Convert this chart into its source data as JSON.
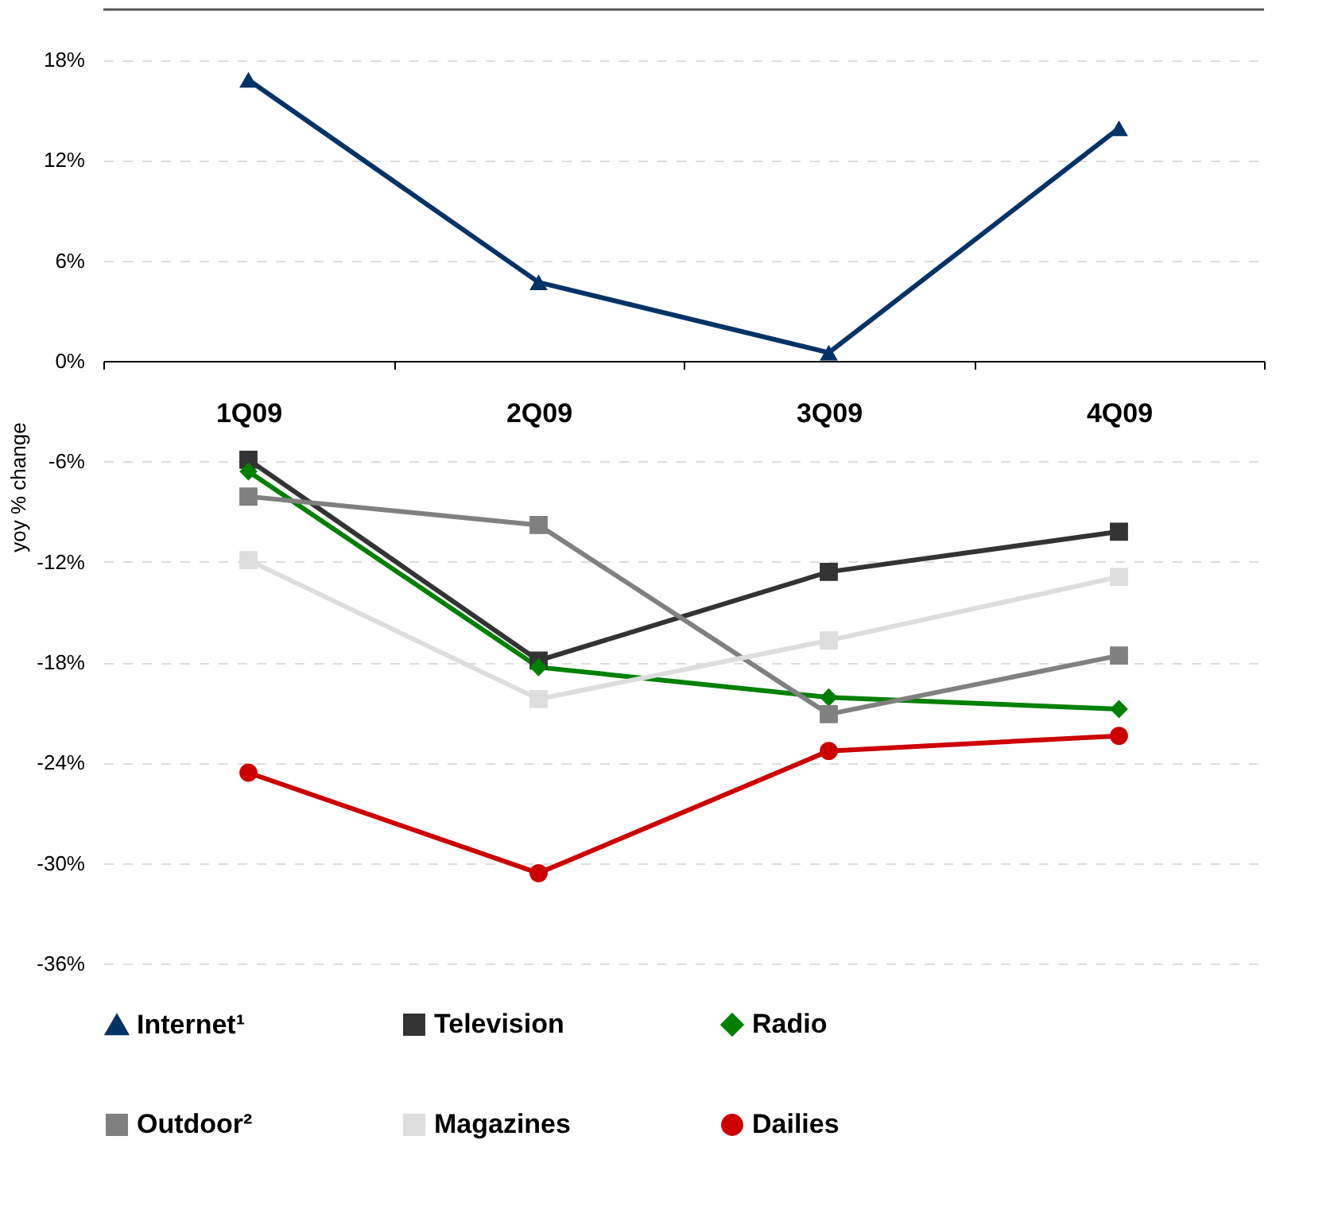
{
  "chart_data": {
    "type": "line",
    "ylabel": "yoy % change",
    "categories": [
      "1Q09",
      "2Q09",
      "3Q09",
      "4Q09"
    ],
    "series": [
      {
        "name": "Internet¹",
        "color": "#003366",
        "marker": "triangle",
        "values": [
          16.8,
          4.7,
          0.5,
          13.9
        ]
      },
      {
        "name": "Television",
        "color": "#333333",
        "marker": "square",
        "values": [
          -5.9,
          -17.9,
          -12.6,
          -10.2
        ]
      },
      {
        "name": "Radio",
        "color": "#008000",
        "marker": "diamond",
        "values": [
          -6.6,
          -18.3,
          -20.1,
          -20.8
        ]
      },
      {
        "name": "Outdoor²",
        "color": "#808080",
        "marker": "square",
        "values": [
          -8.1,
          -9.8,
          -21.1,
          -17.6
        ]
      },
      {
        "name": "Magazines",
        "color": "#dddddd",
        "marker": "square",
        "values": [
          -11.9,
          -20.2,
          -16.7,
          -12.9
        ]
      },
      {
        "name": "Dailies",
        "color": "#cc0000",
        "marker": "circle",
        "values": [
          -24.6,
          -30.6,
          -23.3,
          -22.4
        ]
      }
    ],
    "ylim": [
      -36,
      21
    ],
    "yticks": [
      {
        "value": 18,
        "label": "18%"
      },
      {
        "value": 12,
        "label": "12%"
      },
      {
        "value": 6,
        "label": "6%"
      },
      {
        "value": 0,
        "label": "0%"
      },
      {
        "value": -6,
        "label": "-6%"
      },
      {
        "value": -12,
        "label": "-12%"
      },
      {
        "value": -18,
        "label": "-18%"
      },
      {
        "value": -24,
        "label": "-24%"
      },
      {
        "value": -30,
        "label": "-30%"
      },
      {
        "value": -36,
        "label": "-36%"
      }
    ],
    "grid": "y",
    "legend": "bottom",
    "line_style": "solid"
  }
}
